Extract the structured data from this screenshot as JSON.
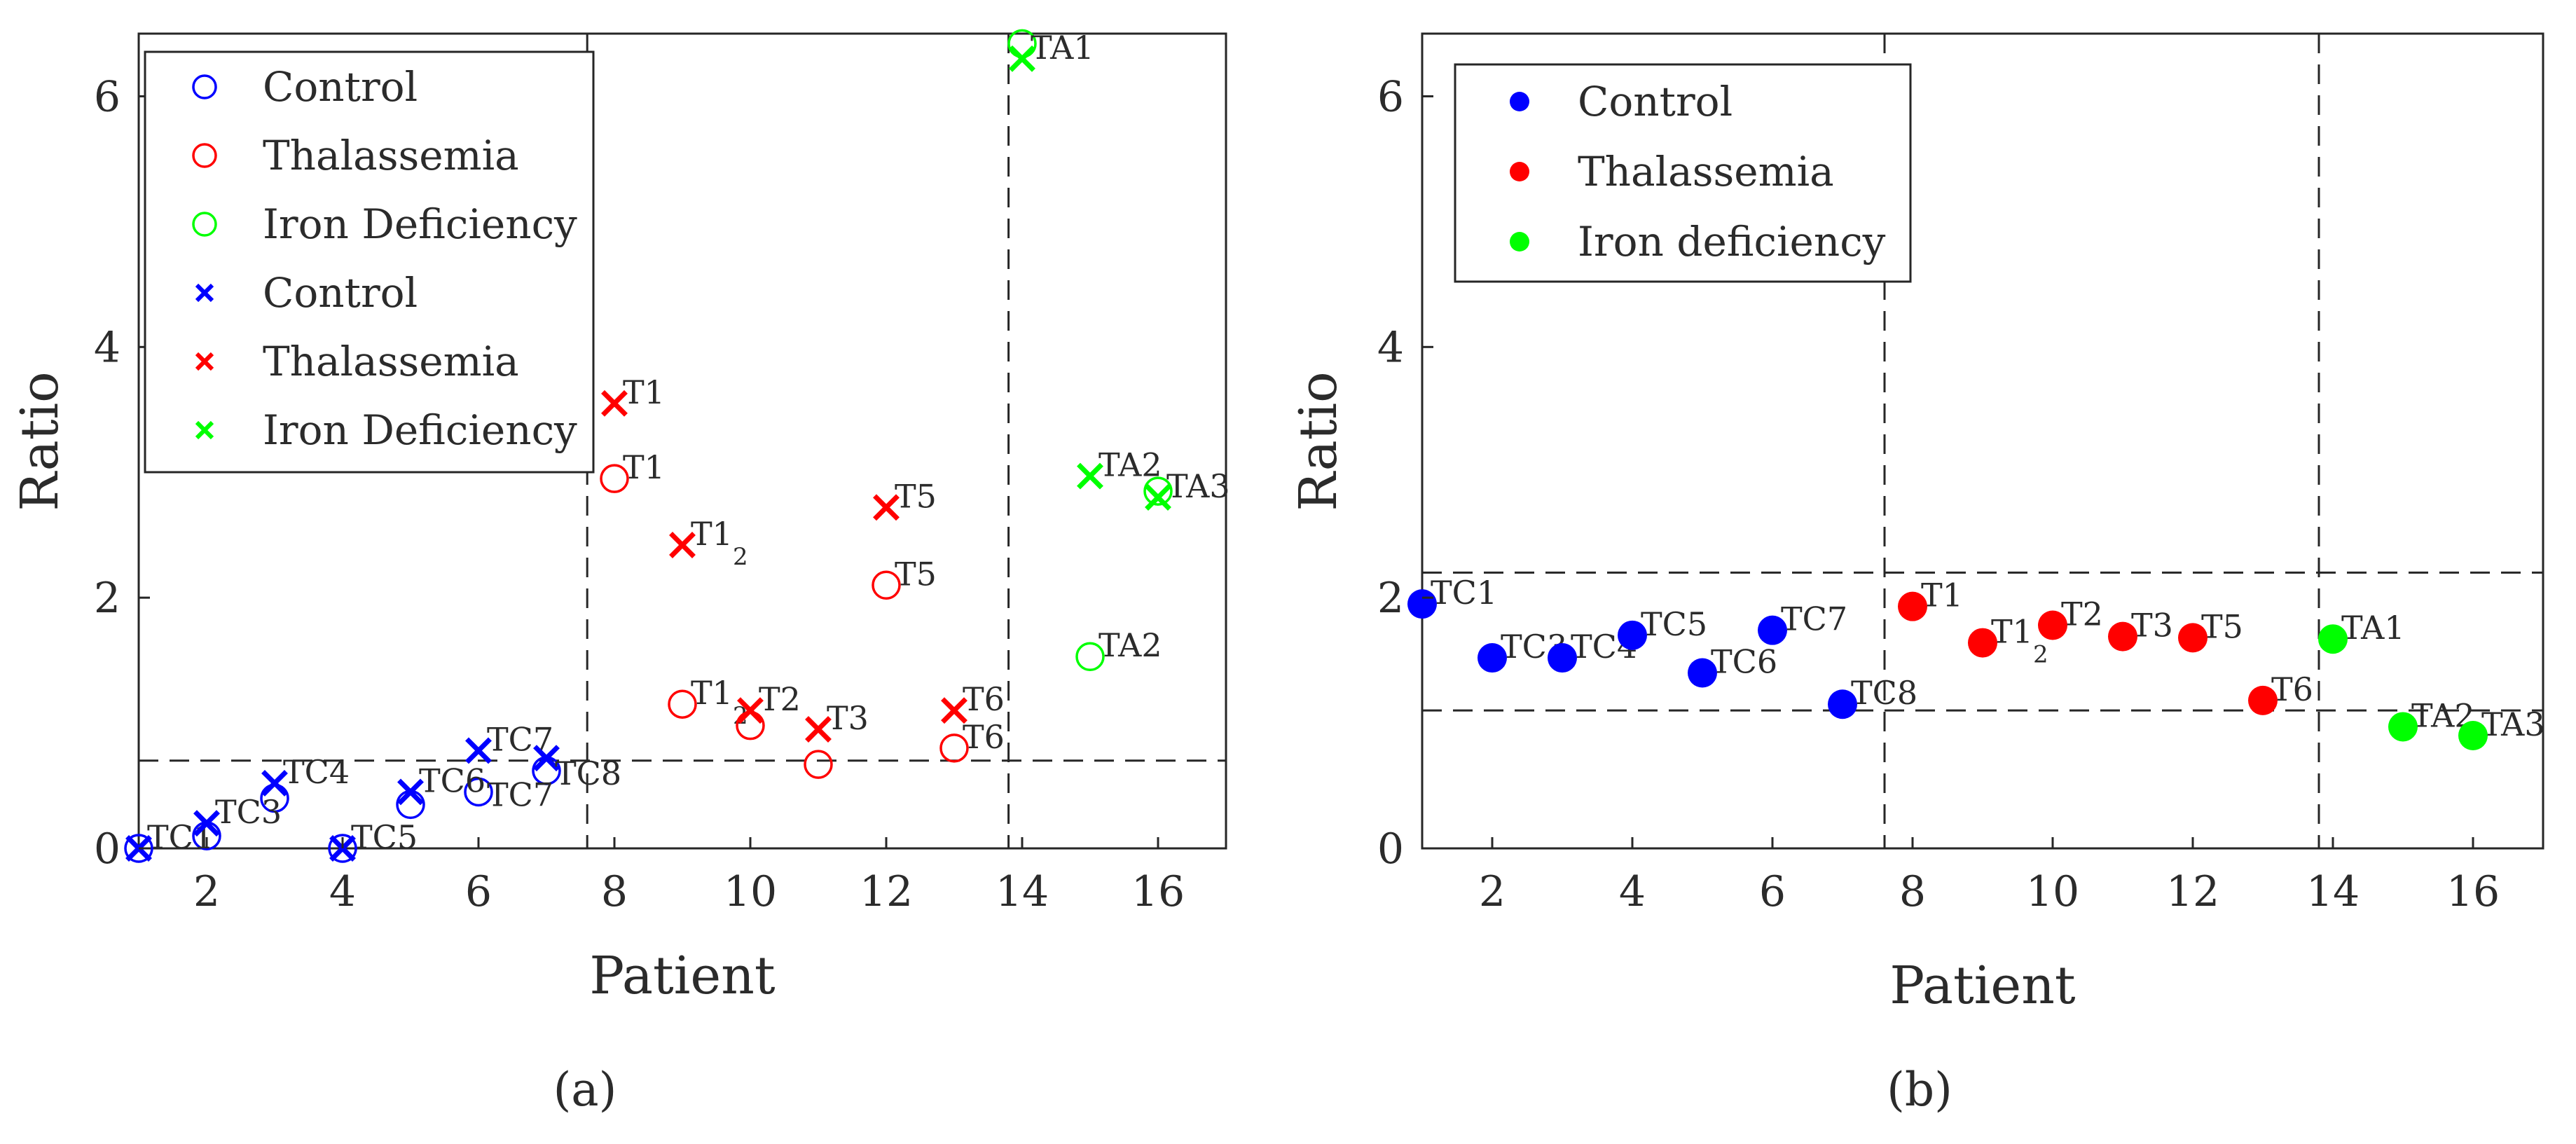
{
  "chart_data": [
    {
      "type": "scatter",
      "panel_label": "(a)",
      "xlabel": "Patient",
      "ylabel": "Ratio",
      "xlim": [
        1,
        17
      ],
      "ylim": [
        0,
        6.5
      ],
      "xticks": [
        2,
        4,
        6,
        8,
        10,
        12,
        14,
        16
      ],
      "yticks": [
        0,
        2,
        4,
        6
      ],
      "vlines": [
        7.6,
        13.8
      ],
      "hlines": [
        0.7
      ],
      "legend_position": "top-left",
      "legend": [
        {
          "label": "Control",
          "marker": "circle",
          "color": "#0000ff"
        },
        {
          "label": "Thalassemia",
          "marker": "circle",
          "color": "#ff0000"
        },
        {
          "label": "Iron Deficiency",
          "marker": "circle",
          "color": "#00ff00"
        },
        {
          "label": "Control",
          "marker": "cross",
          "color": "#0000ff"
        },
        {
          "label": "Thalassemia",
          "marker": "cross",
          "color": "#ff0000"
        },
        {
          "label": "Iron Deficiency",
          "marker": "cross",
          "color": "#00ff00"
        }
      ],
      "series": [
        {
          "name": "Control",
          "marker": "circle",
          "color": "#0000ff",
          "points": [
            {
              "x": 1,
              "y": 0.0
            },
            {
              "x": 2,
              "y": 0.1
            },
            {
              "x": 3,
              "y": 0.4
            },
            {
              "x": 4,
              "y": 0.0
            },
            {
              "x": 5,
              "y": 0.35
            },
            {
              "x": 6,
              "y": 0.45
            },
            {
              "x": 7,
              "y": 0.62
            }
          ]
        },
        {
          "name": "Thalassemia",
          "marker": "circle",
          "color": "#ff0000",
          "points": [
            {
              "x": 8,
              "y": 2.95,
              "label": "T1"
            },
            {
              "x": 9,
              "y": 1.15,
              "label": "T1",
              "sub": "2"
            },
            {
              "x": 10,
              "y": 0.98
            },
            {
              "x": 11,
              "y": 0.67
            },
            {
              "x": 12,
              "y": 2.1,
              "label": "T5"
            },
            {
              "x": 13,
              "y": 0.8,
              "label": "T6"
            }
          ]
        },
        {
          "name": "Iron Deficiency",
          "marker": "circle",
          "color": "#00ff00",
          "points": [
            {
              "x": 14,
              "y": 6.42
            },
            {
              "x": 15,
              "y": 1.53,
              "label": "TA2"
            },
            {
              "x": 16,
              "y": 2.85
            }
          ]
        },
        {
          "name": "Control",
          "marker": "cross",
          "color": "#0000ff",
          "points": [
            {
              "x": 1,
              "y": 0.0,
              "label": "TC1"
            },
            {
              "x": 2,
              "y": 0.2,
              "label": "TC3"
            },
            {
              "x": 3,
              "y": 0.52,
              "label": "TC4"
            },
            {
              "x": 4,
              "y": 0.0,
              "label": "TC5"
            },
            {
              "x": 5,
              "y": 0.45,
              "label": "TC6"
            },
            {
              "x": 6,
              "y": 0.78,
              "label": "TC7"
            },
            {
              "x": 7,
              "y": 0.72
            }
          ]
        },
        {
          "name": "Thalassemia",
          "marker": "cross",
          "color": "#ff0000",
          "points": [
            {
              "x": 8,
              "y": 3.55,
              "label": "T1"
            },
            {
              "x": 9,
              "y": 2.42,
              "label": "T1",
              "sub": "2"
            },
            {
              "x": 10,
              "y": 1.1,
              "label": "T2"
            },
            {
              "x": 11,
              "y": 0.95,
              "label": "T3"
            },
            {
              "x": 12,
              "y": 2.72,
              "label": "T5"
            },
            {
              "x": 13,
              "y": 1.1,
              "label": "T6"
            }
          ]
        },
        {
          "name": "Iron Deficiency",
          "marker": "cross",
          "color": "#00ff00",
          "points": [
            {
              "x": 14,
              "y": 6.3,
              "label": "TA1"
            },
            {
              "x": 15,
              "y": 2.97,
              "label": "TA2"
            },
            {
              "x": 16,
              "y": 2.8,
              "label": "TA3"
            }
          ]
        }
      ],
      "extra_labels": [
        {
          "text": "TC7",
          "x": 6,
          "y": 0.45
        },
        {
          "text": "TC8",
          "x": 7,
          "y": 0.62
        }
      ]
    },
    {
      "type": "scatter",
      "panel_label": "(b)",
      "xlabel": "Patient",
      "ylabel": "Ratio",
      "xlim": [
        1,
        17
      ],
      "ylim": [
        0,
        6.5
      ],
      "xticks": [
        2,
        4,
        6,
        8,
        10,
        12,
        14,
        16
      ],
      "yticks": [
        0,
        2,
        4,
        6
      ],
      "vlines": [
        7.6,
        13.8
      ],
      "hlines": [
        2.2,
        1.1
      ],
      "legend_position": "top-left",
      "legend": [
        {
          "label": "Control",
          "marker": "dot",
          "color": "#0000ff"
        },
        {
          "label": "Thalassemia",
          "marker": "dot",
          "color": "#ff0000"
        },
        {
          "label": "Iron deficiency",
          "marker": "dot",
          "color": "#00ff00"
        }
      ],
      "series": [
        {
          "name": "Control",
          "marker": "dot",
          "color": "#0000ff",
          "points": [
            {
              "x": 1,
              "y": 1.95,
              "label": "TC1"
            },
            {
              "x": 2,
              "y": 1.52,
              "label": "TC3"
            },
            {
              "x": 3,
              "y": 1.52,
              "label": "TC4"
            },
            {
              "x": 4,
              "y": 1.7,
              "label": "TC5"
            },
            {
              "x": 5,
              "y": 1.4,
              "label": "TC6"
            },
            {
              "x": 6,
              "y": 1.74,
              "label": "TC7"
            },
            {
              "x": 7,
              "y": 1.15,
              "label": "TC8"
            }
          ]
        },
        {
          "name": "Thalassemia",
          "marker": "dot",
          "color": "#ff0000",
          "points": [
            {
              "x": 8,
              "y": 1.93,
              "label": "T1"
            },
            {
              "x": 9,
              "y": 1.64,
              "label": "T1",
              "sub": "2"
            },
            {
              "x": 10,
              "y": 1.78,
              "label": "T2"
            },
            {
              "x": 11,
              "y": 1.69,
              "label": "T3"
            },
            {
              "x": 12,
              "y": 1.68,
              "label": "T5"
            },
            {
              "x": 13,
              "y": 1.18,
              "label": "T6"
            }
          ]
        },
        {
          "name": "Iron deficiency",
          "marker": "dot",
          "color": "#00ff00",
          "points": [
            {
              "x": 14,
              "y": 1.67,
              "label": "TA1"
            },
            {
              "x": 15,
              "y": 0.97,
              "label": "TA2"
            },
            {
              "x": 16,
              "y": 0.9,
              "label": "TA3"
            }
          ]
        }
      ],
      "extra_labels": []
    }
  ]
}
